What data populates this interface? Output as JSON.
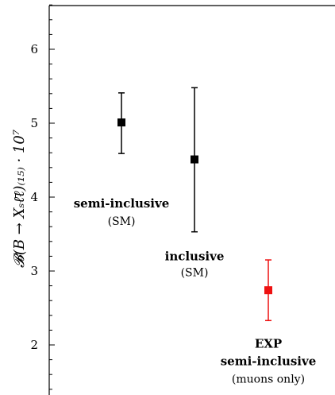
{
  "chart_data": {
    "type": "scatter",
    "title": "",
    "xlabel": "",
    "ylabel": "𝓑(B → Xₛℓ̄ℓ)₍₁₅₎ · 10⁷",
    "ylim": [
      1.4,
      6.6
    ],
    "yticks": [
      "2",
      "3",
      "4",
      "5",
      "6"
    ],
    "grid": false,
    "points": [
      {
        "label": "semi-inclusive",
        "sublabel": "(SM)",
        "value": 5.01,
        "err_high": 5.41,
        "err_low": 4.59,
        "color": "#000000"
      },
      {
        "label": "inclusive",
        "sublabel": "(SM)",
        "value": 4.51,
        "err_high": 5.48,
        "err_low": 3.53,
        "color": "#000000"
      },
      {
        "label": "EXP",
        "label2": "semi-inclusive",
        "sublabel": "(muons only)",
        "value": 2.74,
        "err_high": 3.15,
        "err_low": 2.33,
        "color": "#ee1111"
      }
    ]
  }
}
